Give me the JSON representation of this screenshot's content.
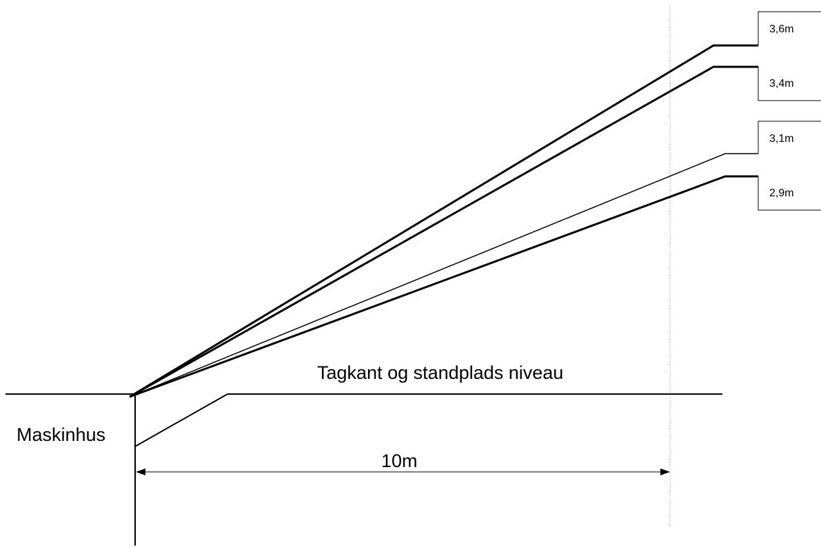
{
  "diagram": {
    "roof_label": "Tagkant og standplads niveau",
    "building_label": "Maskinhus",
    "distance_label": "10m",
    "line_color": "#000000",
    "guide_color": "#888888",
    "heights": [
      {
        "label": "3,6m"
      },
      {
        "label": "3,4m"
      },
      {
        "label": "3,1m"
      },
      {
        "label": "2,9m"
      }
    ]
  }
}
